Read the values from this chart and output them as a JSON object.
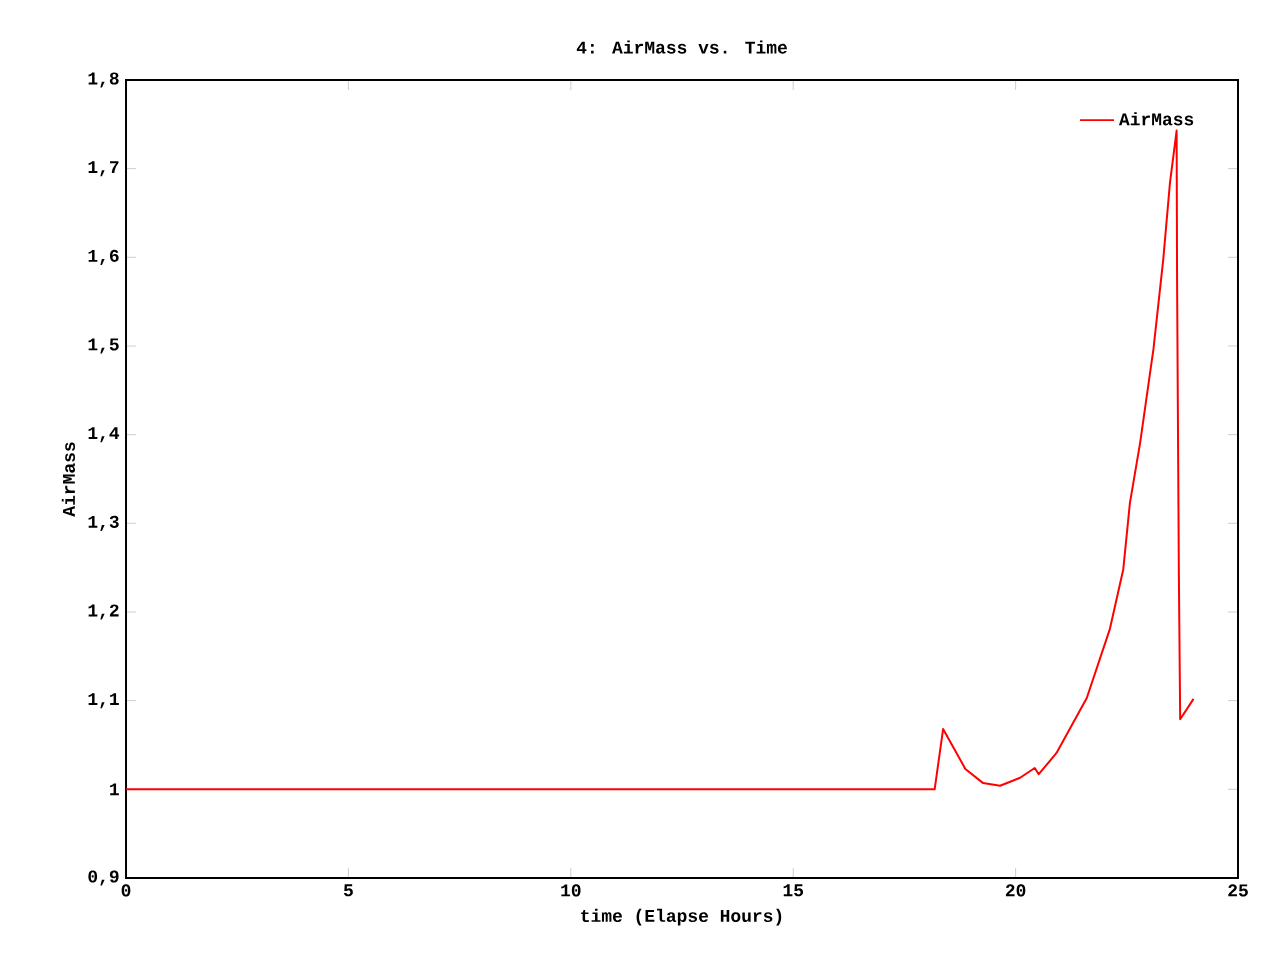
{
  "chart_data": {
    "type": "line",
    "title": "4: AirMass vs. Time",
    "xlabel": "time (Elapse Hours)",
    "ylabel": "AirMass",
    "xlim": [
      0,
      25
    ],
    "xticks": [
      0,
      5,
      10,
      15,
      20,
      25
    ],
    "ylim": [
      0.9,
      1.8
    ],
    "yticks": [
      {
        "value": 0.9,
        "label": "0,9"
      },
      1,
      {
        "value": 1.1,
        "label": "1,1"
      },
      {
        "value": 1.2,
        "label": "1,2"
      },
      {
        "value": 1.3,
        "label": "1,3"
      },
      {
        "value": 1.4,
        "label": "1,4"
      },
      {
        "value": 1.5,
        "label": "1,5"
      },
      {
        "value": 1.6,
        "label": "1,6"
      },
      {
        "value": 1.7,
        "label": "1,7"
      },
      {
        "value": 1.8,
        "label": "1,8"
      }
    ],
    "legend": "top right",
    "grid": false,
    "marker": "none",
    "line_style": "solid",
    "series": [
      {
        "name": "AirMass",
        "color": "#ff0000",
        "x": [
          0,
          18.18,
          18.37,
          18.87,
          19.27,
          19.65,
          20.1,
          20.43,
          20.52,
          20.92,
          21.6,
          22.12,
          22.42,
          22.57,
          22.8,
          23.1,
          23.32,
          23.47,
          23.62,
          23.63,
          23.67,
          23.7,
          24.0
        ],
        "values": [
          1,
          1,
          1.068,
          1.023,
          1.007,
          1.004,
          1.013,
          1.024,
          1.017,
          1.041,
          1.103,
          1.181,
          1.248,
          1.323,
          1.391,
          1.497,
          1.598,
          1.684,
          1.743,
          1.576,
          1.244,
          1.079,
          1.102
        ]
      }
    ]
  }
}
